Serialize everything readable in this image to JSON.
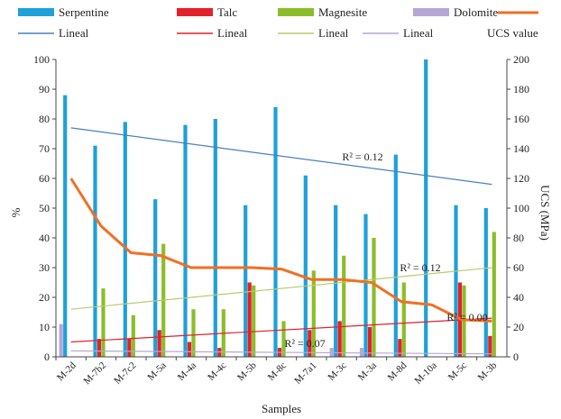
{
  "chart_data": {
    "type": "bar",
    "xlabel": "Samples",
    "ylabel": "%",
    "y2label": "UCS (MPa)",
    "ylim": [
      0,
      100
    ],
    "y2lim": [
      0,
      200
    ],
    "yticks": [
      0,
      10,
      20,
      30,
      40,
      50,
      60,
      70,
      80,
      90,
      100
    ],
    "y2ticks": [
      0,
      20,
      40,
      60,
      80,
      100,
      120,
      140,
      160,
      180,
      200
    ],
    "categories": [
      "M-2d",
      "M-7b2",
      "M-7c2",
      "M-5a",
      "M-4a",
      "M-4c",
      "M-5b",
      "M-8c",
      "M-7a1",
      "M-3c",
      "M-3a",
      "M-8d",
      "M-10a",
      "M-5c",
      "M-3b"
    ],
    "series": [
      {
        "name": "Serpentine",
        "color": "#1fa0d8",
        "values": [
          88,
          71,
          79,
          53,
          78,
          80,
          51,
          84,
          61,
          51,
          48,
          68,
          100,
          51,
          50
        ]
      },
      {
        "name": "Talc",
        "color": "#e3212b",
        "values": [
          0,
          6,
          6,
          9,
          5,
          3,
          25,
          3,
          9,
          12,
          10,
          6,
          0,
          25,
          7
        ]
      },
      {
        "name": "Magnesite",
        "color": "#8cbd2a",
        "values": [
          0,
          23,
          14,
          38,
          16,
          16,
          24,
          12,
          29,
          34,
          40,
          25,
          0,
          24,
          42
        ]
      },
      {
        "name": "Dolomite",
        "color": "#b6a6d6",
        "values": [
          11,
          0,
          0,
          0,
          0,
          0,
          0,
          0,
          0,
          3,
          3,
          0,
          0,
          0,
          0
        ]
      }
    ],
    "ucs_series": {
      "name": "UCS value",
      "color": "#f26f22",
      "values": [
        120,
        88,
        70,
        68,
        60,
        60,
        60,
        59,
        52,
        52,
        50,
        37,
        35,
        25,
        24
      ]
    },
    "trendlines": [
      {
        "name": "Lineal",
        "of": "Serpentine",
        "color": "#4a7ebf",
        "start": 77,
        "end": 58,
        "r2_label": "R² = 0.12"
      },
      {
        "name": "Lineal",
        "of": "Talc",
        "color": "#e3212b",
        "start": 5,
        "end": 13,
        "r2_label": "R² = 0.07"
      },
      {
        "name": "Lineal",
        "of": "Magnesite",
        "color": "#b8cc6e",
        "start": 16,
        "end": 30,
        "r2_label": "R² = 0.12"
      },
      {
        "name": "Lineal",
        "of": "Dolomite",
        "color": "#b6a6d6",
        "start": 2,
        "end": 1,
        "r2_label": ""
      }
    ],
    "r2_ucs_label": "R² = 0.00",
    "legend_position": "top",
    "grid": false
  }
}
